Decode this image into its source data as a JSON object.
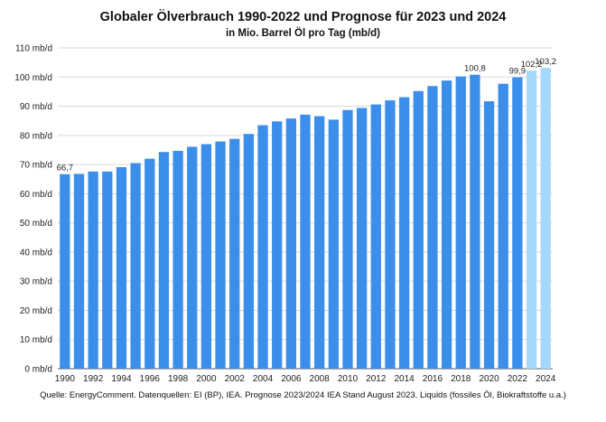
{
  "chart_data": {
    "type": "bar",
    "title": "Globaler Ölverbrauch 1990-2022 und Prognose für 2023 und 2024",
    "subtitle": "in Mio. Barrel Öl pro Tag (mb/d)",
    "source": "Quelle: EnergyComment. Datenquellen: EI (BP), IEA. Prognose 2023/2024 IEA Stand August 2023. Liquids (fossiles Öl, Biokraftstoffe u.a.)",
    "xlabel": "",
    "ylabel": "",
    "ylim": [
      0,
      110
    ],
    "grid": true,
    "y_ticks": [
      "0 mb/d",
      "10 mb/d",
      "20 mb/d",
      "30 mb/d",
      "40 mb/d",
      "50 mb/d",
      "60 mb/d",
      "70 mb/d",
      "80 mb/d",
      "90 mb/d",
      "100 mb/d",
      "110 mb/d"
    ],
    "x_tick_labels": [
      "1990",
      "1992",
      "1994",
      "1996",
      "1998",
      "2000",
      "2002",
      "2004",
      "2006",
      "2008",
      "2010",
      "2012",
      "2014",
      "2016",
      "2018",
      "2020",
      "2022",
      "2024"
    ],
    "categories": [
      "1990",
      "1991",
      "1992",
      "1993",
      "1994",
      "1995",
      "1996",
      "1997",
      "1998",
      "1999",
      "2000",
      "2001",
      "2002",
      "2003",
      "2004",
      "2005",
      "2006",
      "2007",
      "2008",
      "2009",
      "2010",
      "2011",
      "2012",
      "2013",
      "2014",
      "2015",
      "2016",
      "2017",
      "2018",
      "2019",
      "2020",
      "2021",
      "2022",
      "2023",
      "2024"
    ],
    "values": [
      66.7,
      66.8,
      67.6,
      67.6,
      69.1,
      70.5,
      72.0,
      74.3,
      74.7,
      76.1,
      77.0,
      77.9,
      78.8,
      80.5,
      83.5,
      84.8,
      85.8,
      87.1,
      86.6,
      85.4,
      88.7,
      89.4,
      90.6,
      92.0,
      93.1,
      95.2,
      96.9,
      98.8,
      100.2,
      100.8,
      91.7,
      97.7,
      99.9,
      102.2,
      103.2
    ],
    "forecast": [
      false,
      false,
      false,
      false,
      false,
      false,
      false,
      false,
      false,
      false,
      false,
      false,
      false,
      false,
      false,
      false,
      false,
      false,
      false,
      false,
      false,
      false,
      false,
      false,
      false,
      false,
      false,
      false,
      false,
      false,
      false,
      false,
      false,
      true,
      true
    ],
    "data_labels": [
      {
        "category": "1990",
        "text": "66,7"
      },
      {
        "category": "2019",
        "text": "100,8"
      },
      {
        "category": "2022",
        "text": "99,9"
      },
      {
        "category": "2023",
        "text": "102,2"
      },
      {
        "category": "2024",
        "text": "103,2"
      }
    ],
    "colors": {
      "historic": "#3b8eea",
      "forecast": "#a6d8fb",
      "grid": "#d9d9d9",
      "axis": "#555555"
    }
  }
}
